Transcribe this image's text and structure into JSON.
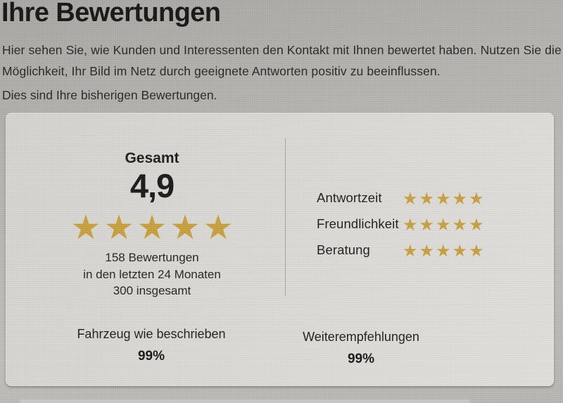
{
  "header": {
    "title": "Ihre Bewertungen",
    "intro_line1": "Hier sehen Sie, wie Kunden und Interessenten den Kontakt mit Ihnen bewertet haben. Nutzen Sie die",
    "intro_line2": "Möglichkeit, Ihr Bild im Netz durch geeignete Antworten positiv zu beeinflussen.",
    "subline": "Dies sind Ihre bisherigen Bewertungen."
  },
  "ratings_card": {
    "overall": {
      "label": "Gesamt",
      "score": "4,9",
      "stars": 5,
      "review_count_line": "158 Bewertungen",
      "period_line": "in den letzten 24 Monaten",
      "total_line": "300 insgesamt"
    },
    "categories": [
      {
        "label": "Antwortzeit",
        "stars": 5
      },
      {
        "label": "Freundlichkeit",
        "stars": 5
      },
      {
        "label": "Beratung",
        "stars": 5
      }
    ],
    "metrics": [
      {
        "label": "Fahrzeug wie beschrieben",
        "value": "99%"
      },
      {
        "label": "Weiterempfehlungen",
        "value": "99%"
      }
    ]
  },
  "colors": {
    "star": "#C69E3C"
  }
}
